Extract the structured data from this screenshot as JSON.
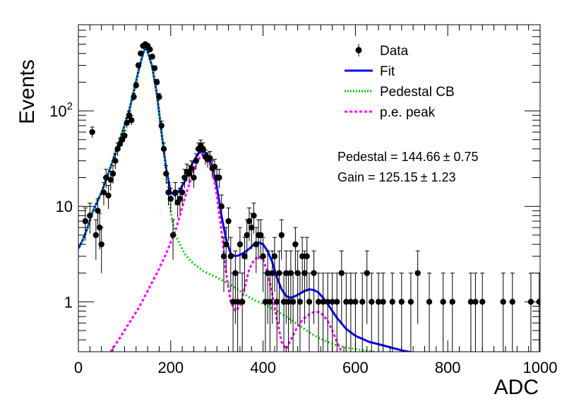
{
  "chart_data": {
    "type": "scatter",
    "xlabel": "ADC",
    "ylabel": "Events",
    "xlim": [
      0,
      1000
    ],
    "ylim": [
      0.3,
      800
    ],
    "y_scale": "log",
    "grid": false,
    "legend_placement": "top-right",
    "x_ticks": [
      {
        "value": 0,
        "label": "0"
      },
      {
        "value": 200,
        "label": "200"
      },
      {
        "value": 400,
        "label": "400"
      },
      {
        "value": 600,
        "label": "600"
      },
      {
        "value": 800,
        "label": "800"
      },
      {
        "value": 1000,
        "label": "1000"
      }
    ],
    "y_ticks": [
      {
        "value": 1,
        "label": "1",
        "sup": ""
      },
      {
        "value": 10,
        "label": "10",
        "sup": ""
      },
      {
        "value": 100,
        "label": "10",
        "sup": "2"
      }
    ],
    "legend": [
      {
        "label": "Data",
        "style": "marker"
      },
      {
        "label": "Fit",
        "style": "solid",
        "color": "#0000ff"
      },
      {
        "label": "Pedestal CB",
        "style": "dotted",
        "color": "#00cc00"
      },
      {
        "label": "p.e. peak",
        "style": "dashed",
        "color": "#ff00ff"
      }
    ],
    "annotations": [
      {
        "name": "Pedestal",
        "text": "Pedestal = 144.66",
        "pm": "± 0.75"
      },
      {
        "name": "Gain",
        "text": "Gain = 125.15",
        "pm": "± 1.23"
      }
    ],
    "fit_params": {
      "pedestal": 144.66,
      "gain": 125.15
    },
    "series": [
      {
        "name": "Data",
        "color": "#000000",
        "points": [
          [
            15,
            7
          ],
          [
            25,
            8
          ],
          [
            30,
            60
          ],
          [
            38,
            5
          ],
          [
            42,
            9
          ],
          [
            46,
            6
          ],
          [
            50,
            4
          ],
          [
            55,
            14
          ],
          [
            60,
            20
          ],
          [
            65,
            13
          ],
          [
            70,
            19
          ],
          [
            75,
            22
          ],
          [
            80,
            30
          ],
          [
            85,
            40
          ],
          [
            90,
            45
          ],
          [
            95,
            50
          ],
          [
            100,
            55
          ],
          [
            105,
            75
          ],
          [
            110,
            90
          ],
          [
            115,
            80
          ],
          [
            120,
            140
          ],
          [
            125,
            185
          ],
          [
            130,
            300
          ],
          [
            135,
            400
          ],
          [
            140,
            480
          ],
          [
            145,
            500
          ],
          [
            150,
            480
          ],
          [
            155,
            440
          ],
          [
            160,
            370
          ],
          [
            165,
            280
          ],
          [
            170,
            200
          ],
          [
            175,
            140
          ],
          [
            180,
            70
          ],
          [
            185,
            40
          ],
          [
            190,
            22
          ],
          [
            195,
            14
          ],
          [
            200,
            12
          ],
          [
            205,
            5
          ],
          [
            210,
            14
          ],
          [
            215,
            11
          ],
          [
            220,
            12
          ],
          [
            225,
            14
          ],
          [
            230,
            20
          ],
          [
            235,
            23
          ],
          [
            240,
            22
          ],
          [
            245,
            25
          ],
          [
            250,
            20
          ],
          [
            255,
            30
          ],
          [
            260,
            40
          ],
          [
            265,
            43
          ],
          [
            270,
            40
          ],
          [
            275,
            33
          ],
          [
            280,
            31
          ],
          [
            285,
            32
          ],
          [
            290,
            25
          ],
          [
            295,
            26
          ],
          [
            300,
            20
          ],
          [
            305,
            20
          ],
          [
            310,
            10
          ],
          [
            315,
            3
          ],
          [
            320,
            4
          ],
          [
            325,
            7
          ],
          [
            330,
            3
          ],
          [
            335,
            1
          ],
          [
            340,
            2
          ],
          [
            345,
            1
          ],
          [
            350,
            4
          ],
          [
            355,
            1
          ],
          [
            360,
            3
          ],
          [
            365,
            5
          ],
          [
            370,
            7
          ],
          [
            375,
            6
          ],
          [
            380,
            8
          ],
          [
            385,
            4
          ],
          [
            390,
            5
          ],
          [
            395,
            5
          ],
          [
            400,
            3
          ],
          [
            405,
            1
          ],
          [
            410,
            2
          ],
          [
            415,
            1
          ],
          [
            420,
            2
          ],
          [
            425,
            3
          ],
          [
            430,
            1
          ],
          [
            435,
            2
          ],
          [
            440,
            5
          ],
          [
            445,
            1
          ],
          [
            450,
            2
          ],
          [
            455,
            1
          ],
          [
            460,
            2
          ],
          [
            465,
            1
          ],
          [
            470,
            4
          ],
          [
            475,
            2
          ],
          [
            480,
            1
          ],
          [
            485,
            3
          ],
          [
            490,
            2
          ],
          [
            495,
            3
          ],
          [
            500,
            1
          ],
          [
            510,
            2
          ],
          [
            520,
            1
          ],
          [
            530,
            1
          ],
          [
            540,
            1
          ],
          [
            550,
            1
          ],
          [
            560,
            1
          ],
          [
            570,
            2
          ],
          [
            580,
            1
          ],
          [
            590,
            1
          ],
          [
            600,
            1
          ],
          [
            615,
            1
          ],
          [
            625,
            2
          ],
          [
            635,
            1
          ],
          [
            650,
            1
          ],
          [
            660,
            1
          ],
          [
            680,
            1
          ],
          [
            700,
            1
          ],
          [
            720,
            1
          ],
          [
            735,
            2
          ],
          [
            760,
            1
          ],
          [
            790,
            1
          ],
          [
            810,
            1
          ],
          [
            850,
            1
          ],
          [
            860,
            1
          ],
          [
            875,
            1
          ],
          [
            920,
            1
          ],
          [
            940,
            1
          ],
          [
            980,
            1
          ],
          [
            998,
            1
          ]
        ]
      },
      {
        "name": "Fit",
        "color": "#0000ff",
        "points": [
          [
            0,
            3.6
          ],
          [
            10,
            4.5
          ],
          [
            20,
            6
          ],
          [
            30,
            8.5
          ],
          [
            40,
            11
          ],
          [
            50,
            14
          ],
          [
            60,
            19
          ],
          [
            70,
            26
          ],
          [
            80,
            36
          ],
          [
            90,
            50
          ],
          [
            100,
            70
          ],
          [
            110,
            100
          ],
          [
            120,
            160
          ],
          [
            130,
            260
          ],
          [
            140,
            400
          ],
          [
            145,
            460
          ],
          [
            150,
            420
          ],
          [
            160,
            290
          ],
          [
            170,
            150
          ],
          [
            180,
            60
          ],
          [
            190,
            25
          ],
          [
            200,
            14
          ],
          [
            210,
            13
          ],
          [
            220,
            15
          ],
          [
            230,
            18
          ],
          [
            240,
            24
          ],
          [
            250,
            30
          ],
          [
            260,
            36
          ],
          [
            270,
            38
          ],
          [
            280,
            35
          ],
          [
            290,
            25
          ],
          [
            300,
            16
          ],
          [
            310,
            8
          ],
          [
            320,
            4.5
          ],
          [
            330,
            3.2
          ],
          [
            340,
            3
          ],
          [
            350,
            3.1
          ],
          [
            360,
            3.3
          ],
          [
            370,
            3.6
          ],
          [
            380,
            4
          ],
          [
            390,
            4.2
          ],
          [
            400,
            4
          ],
          [
            410,
            3.4
          ],
          [
            420,
            2.6
          ],
          [
            430,
            1.8
          ],
          [
            440,
            1.35
          ],
          [
            450,
            1.15
          ],
          [
            460,
            1.1
          ],
          [
            470,
            1.15
          ],
          [
            480,
            1.22
          ],
          [
            490,
            1.3
          ],
          [
            500,
            1.35
          ],
          [
            510,
            1.33
          ],
          [
            520,
            1.25
          ],
          [
            530,
            1.1
          ],
          [
            540,
            0.95
          ],
          [
            550,
            0.8
          ],
          [
            560,
            0.68
          ],
          [
            580,
            0.52
          ],
          [
            600,
            0.44
          ],
          [
            630,
            0.38
          ],
          [
            660,
            0.35
          ],
          [
            700,
            0.31
          ],
          [
            730,
            0.29
          ]
        ]
      },
      {
        "name": "Pedestal CB",
        "color": "#00cc00",
        "points": [
          [
            0,
            3.6
          ],
          [
            10,
            4.5
          ],
          [
            20,
            6
          ],
          [
            30,
            8.5
          ],
          [
            40,
            11
          ],
          [
            50,
            14
          ],
          [
            60,
            19
          ],
          [
            70,
            26
          ],
          [
            80,
            36
          ],
          [
            90,
            50
          ],
          [
            100,
            70
          ],
          [
            110,
            100
          ],
          [
            120,
            160
          ],
          [
            130,
            260
          ],
          [
            140,
            400
          ],
          [
            145,
            460
          ],
          [
            150,
            420
          ],
          [
            160,
            290
          ],
          [
            170,
            150
          ],
          [
            180,
            60
          ],
          [
            190,
            25
          ],
          [
            200,
            9
          ],
          [
            210,
            5
          ],
          [
            220,
            4
          ],
          [
            230,
            3.2
          ],
          [
            240,
            2.8
          ],
          [
            250,
            2.5
          ],
          [
            260,
            2.3
          ],
          [
            270,
            2.1
          ],
          [
            280,
            2
          ],
          [
            290,
            1.9
          ],
          [
            300,
            1.8
          ],
          [
            320,
            1.6
          ],
          [
            340,
            1.4
          ],
          [
            360,
            1.2
          ],
          [
            380,
            1.05
          ],
          [
            400,
            0.95
          ],
          [
            420,
            0.85
          ],
          [
            440,
            0.75
          ],
          [
            460,
            0.65
          ],
          [
            480,
            0.56
          ],
          [
            500,
            0.48
          ],
          [
            520,
            0.42
          ],
          [
            540,
            0.38
          ],
          [
            560,
            0.35
          ],
          [
            580,
            0.33
          ],
          [
            600,
            0.32
          ],
          [
            640,
            0.3
          ]
        ]
      },
      {
        "name": "p.e. peak",
        "color": "#ff00ff",
        "points": [
          [
            70,
            0.3
          ],
          [
            90,
            0.42
          ],
          [
            110,
            0.6
          ],
          [
            130,
            0.85
          ],
          [
            150,
            1.3
          ],
          [
            170,
            2
          ],
          [
            190,
            3.2
          ],
          [
            200,
            4.2
          ],
          [
            210,
            5.5
          ],
          [
            220,
            8
          ],
          [
            230,
            12
          ],
          [
            240,
            17
          ],
          [
            250,
            24
          ],
          [
            260,
            31
          ],
          [
            270,
            36
          ],
          [
            280,
            33
          ],
          [
            290,
            24
          ],
          [
            300,
            13
          ],
          [
            310,
            5.5
          ],
          [
            320,
            2
          ],
          [
            330,
            1
          ],
          [
            340,
            0.8
          ],
          [
            350,
            0.9
          ],
          [
            360,
            1.4
          ],
          [
            370,
            2.2
          ],
          [
            380,
            2.7
          ],
          [
            390,
            3
          ],
          [
            400,
            2.8
          ],
          [
            410,
            2
          ],
          [
            420,
            1.2
          ],
          [
            430,
            0.65
          ],
          [
            440,
            0.38
          ],
          [
            450,
            0.32
          ],
          [
            460,
            0.4
          ],
          [
            470,
            0.5
          ],
          [
            480,
            0.6
          ],
          [
            490,
            0.68
          ],
          [
            500,
            0.74
          ],
          [
            510,
            0.78
          ],
          [
            520,
            0.78
          ],
          [
            530,
            0.73
          ],
          [
            540,
            0.63
          ],
          [
            550,
            0.5
          ],
          [
            560,
            0.38
          ],
          [
            570,
            0.3
          ]
        ]
      }
    ]
  }
}
